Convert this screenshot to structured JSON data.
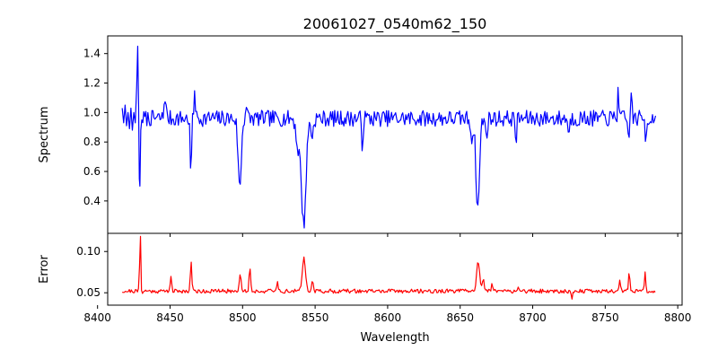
{
  "chart_data": [
    {
      "type": "line",
      "title": "20061027_0540m62_150",
      "xlabel": "",
      "ylabel": "Spectrum",
      "xlim": [
        8407,
        8803
      ],
      "ylim": [
        0.18,
        1.52
      ],
      "xticks": [
        8400,
        8450,
        8500,
        8550,
        8600,
        8650,
        8700,
        8750,
        8800
      ],
      "yticks": [
        0.4,
        0.6,
        0.8,
        1.0,
        1.2,
        1.4
      ],
      "ytick_labels": [
        "0.4",
        "0.6",
        "0.8",
        "1.0",
        "1.2",
        "1.4"
      ],
      "series": [
        {
          "color": "#0000ff",
          "noise_seed": 7,
          "noise_amp": 0.055,
          "x_range": [
            8417,
            8785
          ],
          "step": 0.7,
          "baseline": 0.96,
          "points": [
            [
              8417,
              1.03
            ],
            [
              8418,
              0.93
            ],
            [
              8419,
              1.05
            ],
            [
              8420,
              0.91
            ],
            [
              8421,
              1.0
            ],
            [
              8422,
              0.89
            ],
            [
              8423,
              1.03
            ],
            [
              8424,
              0.88
            ],
            [
              8425,
              1.0
            ],
            [
              8426,
              0.93
            ],
            [
              8427,
              1.18
            ],
            [
              8427.7,
              1.45
            ],
            [
              8428.3,
              1.05
            ],
            [
              8428.8,
              0.55
            ],
            [
              8429.2,
              0.5
            ],
            [
              8429.8,
              0.88
            ],
            [
              8430.5,
              0.95
            ]
          ],
          "features": [
            {
              "center": 8429.0,
              "depth": 0.0,
              "width": 0.0
            },
            {
              "center": 8446.5,
              "depth": -0.16,
              "width": 0.6
            },
            {
              "center": 8464.3,
              "depth": 0.38,
              "width": 0.5
            },
            {
              "center": 8467.0,
              "depth": -0.23,
              "width": 0.4
            },
            {
              "center": 8498.0,
              "depth": 0.47,
              "width": 1.1
            },
            {
              "center": 8502.5,
              "depth": -0.08,
              "width": 0.6
            },
            {
              "center": 8542.1,
              "depth": 0.72,
              "width": 1.6
            },
            {
              "center": 8538.0,
              "depth": 0.18,
              "width": 1.2
            },
            {
              "center": 8548.0,
              "depth": 0.12,
              "width": 0.8
            },
            {
              "center": 8582.5,
              "depth": 0.18,
              "width": 0.5
            },
            {
              "center": 8662.1,
              "depth": 0.62,
              "width": 1.2
            },
            {
              "center": 8658.0,
              "depth": 0.12,
              "width": 0.9
            },
            {
              "center": 8668.0,
              "depth": 0.1,
              "width": 0.8
            },
            {
              "center": 8688.5,
              "depth": 0.15,
              "width": 0.5
            },
            {
              "center": 8725.0,
              "depth": 0.12,
              "width": 0.5
            },
            {
              "center": 8759.0,
              "depth": -0.25,
              "width": 0.4
            },
            {
              "center": 8766.0,
              "depth": 0.14,
              "width": 0.5
            },
            {
              "center": 8768.0,
              "depth": -0.2,
              "width": 0.4
            },
            {
              "center": 8778.0,
              "depth": 0.14,
              "width": 0.5
            }
          ]
        }
      ]
    },
    {
      "type": "line",
      "title": "",
      "xlabel": "Wavelength",
      "ylabel": "Error",
      "xlim": [
        8407,
        8803
      ],
      "ylim": [
        0.035,
        0.122
      ],
      "xticks": [
        8400,
        8450,
        8500,
        8550,
        8600,
        8650,
        8700,
        8750,
        8800
      ],
      "xtick_labels": [
        "8400",
        "8450",
        "8500",
        "8550",
        "8600",
        "8650",
        "8700",
        "8750",
        "8800"
      ],
      "yticks": [
        0.05,
        0.1
      ],
      "ytick_labels": [
        "0.05",
        "0.10"
      ],
      "series": [
        {
          "color": "#ff0000",
          "noise_seed": 21,
          "noise_amp": 0.0025,
          "x_range": [
            8417,
            8785
          ],
          "step": 0.7,
          "baseline": 0.052,
          "features": [
            {
              "center": 8429.5,
              "depth": -0.068,
              "width": 0.45
            },
            {
              "center": 8430.3,
              "depth": 0.012,
              "width": 0.3
            },
            {
              "center": 8450.5,
              "depth": -0.018,
              "width": 0.5
            },
            {
              "center": 8464.5,
              "depth": -0.036,
              "width": 0.5
            },
            {
              "center": 8498.3,
              "depth": -0.02,
              "width": 0.7
            },
            {
              "center": 8505.0,
              "depth": -0.03,
              "width": 0.5
            },
            {
              "center": 8524.0,
              "depth": -0.01,
              "width": 0.6
            },
            {
              "center": 8542.3,
              "depth": -0.04,
              "width": 1.1
            },
            {
              "center": 8548.0,
              "depth": -0.013,
              "width": 0.6
            },
            {
              "center": 8662.3,
              "depth": -0.038,
              "width": 1.0
            },
            {
              "center": 8666.0,
              "depth": -0.012,
              "width": 0.7
            },
            {
              "center": 8672.0,
              "depth": -0.008,
              "width": 0.6
            },
            {
              "center": 8690.0,
              "depth": -0.005,
              "width": 0.5
            },
            {
              "center": 8727.0,
              "depth": 0.008,
              "width": 0.5
            },
            {
              "center": 8760.0,
              "depth": -0.012,
              "width": 0.6
            },
            {
              "center": 8766.5,
              "depth": -0.024,
              "width": 0.5
            },
            {
              "center": 8777.5,
              "depth": -0.022,
              "width": 0.5
            }
          ]
        }
      ]
    }
  ]
}
